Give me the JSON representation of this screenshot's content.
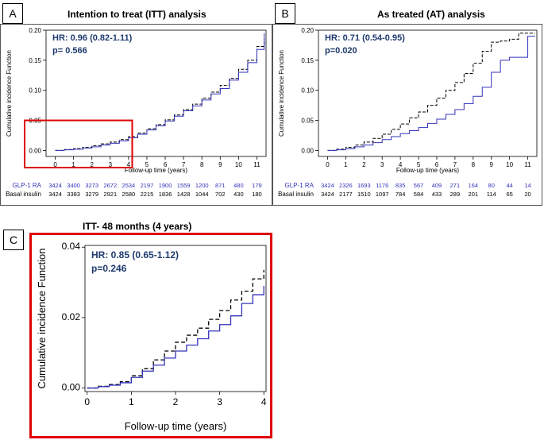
{
  "panels": {
    "a": {
      "label": "A",
      "title": "Intention to treat (ITT) analysis"
    },
    "b": {
      "label": "B",
      "title": "As treated (AT) analysis"
    },
    "c": {
      "label": "C",
      "title": "ITT- 48 months (4 years)"
    }
  },
  "colors": {
    "glp1": "#3333bb",
    "basal": "#000000",
    "highlight": "#dd0000",
    "stats": "#1f3a6e"
  },
  "chart_data": [
    {
      "id": "A",
      "type": "line",
      "title": "Intention to treat (ITT) analysis",
      "xlabel": "Follow-up time (years)",
      "ylabel": "Cumulative incidence Function",
      "xlim": [
        -0.5,
        11.5
      ],
      "ylim": [
        -0.01,
        0.2
      ],
      "xticks": [
        0,
        1,
        2,
        3,
        4,
        5,
        6,
        7,
        8,
        9,
        10,
        11
      ],
      "yticks": [
        "0.00",
        "0.05",
        "0.10",
        "0.15",
        "0.20"
      ],
      "annotation": {
        "hr": "HR: 0.96 (0.82-1.11)",
        "p": "p= 0.566"
      },
      "highlight_box": {
        "x": [
          -0.5,
          4.2
        ],
        "y": [
          -0.01,
          0.05
        ]
      },
      "series": [
        {
          "name": "",
          "style": "dashed",
          "color": "#000000",
          "x": [
            0,
            0.5,
            1,
            1.5,
            2,
            2.5,
            3,
            3.5,
            4,
            4.5,
            5,
            5.5,
            6,
            6.5,
            7,
            7.5,
            8,
            8.5,
            9,
            9.5,
            10,
            10.5,
            11,
            11.4
          ],
          "y": [
            0,
            0.0015,
            0.003,
            0.005,
            0.008,
            0.011,
            0.014,
            0.018,
            0.023,
            0.029,
            0.036,
            0.043,
            0.051,
            0.059,
            0.068,
            0.077,
            0.087,
            0.097,
            0.108,
            0.12,
            0.135,
            0.15,
            0.173,
            0.185
          ]
        },
        {
          "name": "",
          "style": "solid",
          "color": "#3333bb",
          "x": [
            0,
            0.5,
            1,
            1.5,
            2,
            2.5,
            3,
            3.5,
            4,
            4.5,
            5,
            5.5,
            6,
            6.5,
            7,
            7.5,
            8,
            8.5,
            9,
            9.5,
            10,
            10.5,
            11,
            11.4
          ],
          "y": [
            0,
            0.001,
            0.002,
            0.004,
            0.006,
            0.009,
            0.012,
            0.016,
            0.021,
            0.027,
            0.034,
            0.041,
            0.049,
            0.057,
            0.066,
            0.074,
            0.084,
            0.094,
            0.103,
            0.117,
            0.13,
            0.146,
            0.168,
            0.195
          ]
        }
      ],
      "risk_table": {
        "rows": [
          {
            "label": "GLP-1 RA",
            "color": "#3333bb",
            "values": [
              "3424",
              "3400",
              "3273",
              "2672",
              "2534",
              "2197",
              "1900",
              "1559",
              "1200",
              "871",
              "480",
              "179"
            ]
          },
          {
            "label": "Basal insulin",
            "color": "#000000",
            "values": [
              "3424",
              "3383",
              "3279",
              "2921",
              "2580",
              "2215",
              "1836",
              "1428",
              "1044",
              "702",
              "430",
              "180"
            ]
          }
        ]
      }
    },
    {
      "id": "B",
      "type": "line",
      "title": "As treated (AT) analysis",
      "xlabel": "Follow-up time (years)",
      "ylabel": "Cumulative incidence Function",
      "xlim": [
        -0.5,
        11.5
      ],
      "ylim": [
        -0.01,
        0.2
      ],
      "xticks": [
        0,
        1,
        2,
        3,
        4,
        5,
        6,
        7,
        8,
        9,
        10,
        11
      ],
      "yticks": [
        "0.00",
        "0.05",
        "0.10",
        "0.15",
        "0.20"
      ],
      "annotation": {
        "hr": "HR: 0.71 (0.54-0.95)",
        "p": "p=0.020"
      },
      "series": [
        {
          "name": "",
          "style": "dashed",
          "color": "#000000",
          "x": [
            0,
            0.5,
            1,
            1.5,
            2,
            2.5,
            3,
            3.5,
            4,
            4.5,
            5,
            5.5,
            6,
            6.5,
            7,
            7.5,
            8,
            8.5,
            9,
            9.5,
            10,
            10.5,
            11,
            11.4
          ],
          "y": [
            0,
            0.002,
            0.005,
            0.009,
            0.014,
            0.02,
            0.027,
            0.035,
            0.044,
            0.054,
            0.064,
            0.075,
            0.087,
            0.1,
            0.113,
            0.128,
            0.145,
            0.165,
            0.18,
            0.182,
            0.185,
            0.195,
            0.195,
            0.195
          ]
        },
        {
          "name": "",
          "style": "solid",
          "color": "#3333bb",
          "x": [
            0,
            0.5,
            1,
            1.5,
            2,
            2.5,
            3,
            3.5,
            4,
            4.5,
            5,
            5.5,
            6,
            6.5,
            7,
            7.5,
            8,
            8.5,
            9,
            9.5,
            10,
            10.5,
            11,
            11.4
          ],
          "y": [
            0,
            0.001,
            0.003,
            0.006,
            0.009,
            0.013,
            0.018,
            0.023,
            0.028,
            0.033,
            0.038,
            0.045,
            0.052,
            0.06,
            0.068,
            0.078,
            0.09,
            0.105,
            0.13,
            0.15,
            0.155,
            0.155,
            0.19,
            0.19
          ]
        }
      ],
      "risk_table": {
        "rows": [
          {
            "label": "GLP-1 RA",
            "color": "#3333bb",
            "values": [
              "3424",
              "2326",
              "1693",
              "1176",
              "835",
              "567",
              "409",
              "271",
              "164",
              "80",
              "44",
              "14"
            ]
          },
          {
            "label": "Basal insulin",
            "color": "#000000",
            "values": [
              "3424",
              "2177",
              "1510",
              "1097",
              "784",
              "584",
              "433",
              "289",
              "201",
              "114",
              "65",
              "20"
            ]
          }
        ]
      }
    },
    {
      "id": "C",
      "type": "line",
      "title": "ITT- 48 months (4 years)",
      "xlabel": "Follow-up time (years)",
      "ylabel": "Cumulative incidence Function",
      "xlim": [
        -0.05,
        4.05
      ],
      "ylim": [
        -0.001,
        0.0405
      ],
      "xticks": [
        0,
        1,
        2,
        3,
        4
      ],
      "yticks": [
        "0.00",
        "0.02",
        "0.04"
      ],
      "annotation": {
        "hr": "HR: 0.85 (0.65-1.12)",
        "p": "p=0.246"
      },
      "series": [
        {
          "name": "",
          "style": "dashed",
          "color": "#000000",
          "x": [
            0,
            0.25,
            0.5,
            0.75,
            1,
            1.25,
            1.5,
            1.75,
            2,
            2.25,
            2.5,
            2.75,
            3,
            3.25,
            3.5,
            3.75,
            4
          ],
          "y": [
            0,
            0.0005,
            0.001,
            0.0018,
            0.0035,
            0.0055,
            0.008,
            0.0105,
            0.013,
            0.015,
            0.017,
            0.0195,
            0.022,
            0.025,
            0.0275,
            0.031,
            0.0335
          ]
        },
        {
          "name": "",
          "style": "solid",
          "color": "#3333bb",
          "x": [
            0,
            0.25,
            0.5,
            0.75,
            1,
            1.25,
            1.5,
            1.75,
            2,
            2.25,
            2.5,
            2.75,
            3,
            3.25,
            3.5,
            3.75,
            4
          ],
          "y": [
            0,
            0.0004,
            0.0008,
            0.0015,
            0.003,
            0.0048,
            0.0065,
            0.0085,
            0.0105,
            0.0122,
            0.014,
            0.0162,
            0.018,
            0.0205,
            0.024,
            0.0265,
            0.029
          ]
        }
      ]
    }
  ]
}
